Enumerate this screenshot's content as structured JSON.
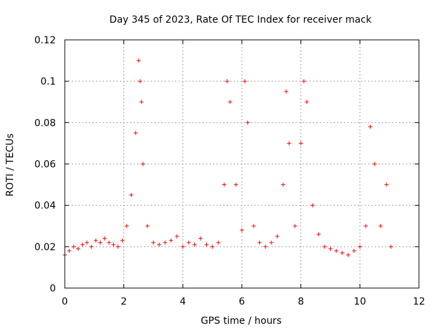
{
  "chart_data": {
    "type": "scatter",
    "title": "Day 345 of 2023, Rate Of TEC Index for receiver mack",
    "xlabel": "GPS time / hours",
    "ylabel": "ROTI / TECUs",
    "xlim": [
      0,
      12
    ],
    "ylim": [
      0,
      0.12
    ],
    "xticks": [
      0,
      2,
      4,
      6,
      8,
      10,
      12
    ],
    "xtick_labels": [
      "0",
      "2",
      "4",
      "6",
      "8",
      "10",
      "12"
    ],
    "yticks": [
      0,
      0.02,
      0.04,
      0.06,
      0.08,
      0.1,
      0.12
    ],
    "ytick_labels": [
      "0",
      "0.02",
      "0.04",
      "0.06",
      "0.08",
      "0.1",
      "0.12"
    ],
    "grid": true,
    "marker": "+",
    "color": "#ff0000",
    "x_range_of_data": [
      0,
      11.1
    ],
    "series": [
      {
        "name": "ROTI",
        "x": [
          0.0,
          0.15,
          0.3,
          0.45,
          0.6,
          0.75,
          0.9,
          1.05,
          1.2,
          1.35,
          1.5,
          1.65,
          1.8,
          1.95,
          2.1,
          2.25,
          2.4,
          2.5,
          2.55,
          2.6,
          2.65,
          2.8,
          3.0,
          3.2,
          3.4,
          3.6,
          3.8,
          4.0,
          4.2,
          4.4,
          4.6,
          4.8,
          5.0,
          5.2,
          5.4,
          5.5,
          5.6,
          5.8,
          6.0,
          6.1,
          6.2,
          6.4,
          6.6,
          6.8,
          7.0,
          7.2,
          7.4,
          7.5,
          7.6,
          7.8,
          8.0,
          8.1,
          8.2,
          8.4,
          8.6,
          8.8,
          9.0,
          9.2,
          9.4,
          9.6,
          9.8,
          10.0,
          10.2,
          10.35,
          10.5,
          10.7,
          10.9,
          11.05
        ],
        "y": [
          0.016,
          0.018,
          0.02,
          0.019,
          0.021,
          0.022,
          0.02,
          0.023,
          0.022,
          0.024,
          0.022,
          0.021,
          0.02,
          0.023,
          0.03,
          0.045,
          0.075,
          0.11,
          0.1,
          0.09,
          0.06,
          0.03,
          0.022,
          0.021,
          0.022,
          0.023,
          0.025,
          0.02,
          0.022,
          0.021,
          0.024,
          0.021,
          0.02,
          0.022,
          0.05,
          0.1,
          0.09,
          0.05,
          0.028,
          0.1,
          0.08,
          0.03,
          0.022,
          0.02,
          0.022,
          0.025,
          0.05,
          0.095,
          0.07,
          0.03,
          0.07,
          0.1,
          0.09,
          0.04,
          0.026,
          0.02,
          0.019,
          0.018,
          0.017,
          0.016,
          0.018,
          0.02,
          0.03,
          0.078,
          0.06,
          0.03,
          0.05,
          0.02
        ]
      }
    ]
  }
}
